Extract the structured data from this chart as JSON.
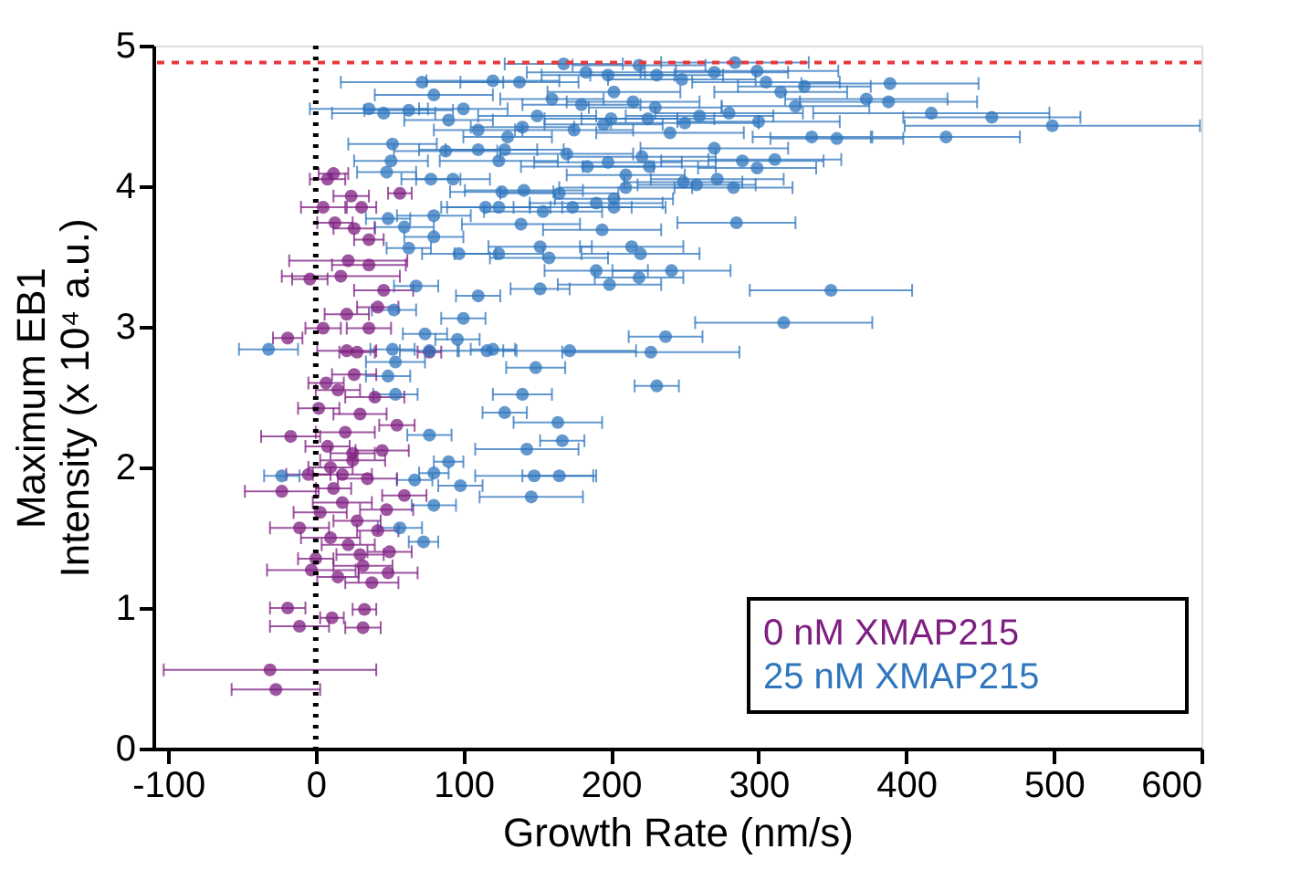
{
  "chart_data": {
    "type": "scatter",
    "xlabel": "Growth Rate (nm/s)",
    "ylabel": "Maximum EB1\nIntensity (x 10⁴ a.u.)",
    "xlim": [
      -110,
      600
    ],
    "xticks": [
      -100,
      0,
      100,
      200,
      300,
      400,
      500,
      600
    ],
    "ylim": [
      0,
      5
    ],
    "yticks": [
      0,
      1,
      2,
      3,
      4,
      5
    ],
    "grid": false,
    "legend": "bottom right",
    "marker": "circle",
    "ref_lines": [
      {
        "axis": "x",
        "value": 0,
        "color": "#000000",
        "line_style": "dotted"
      },
      {
        "axis": "y",
        "value": 4.88,
        "color": "#e8393c",
        "line_style": "dashed"
      }
    ],
    "series": [
      {
        "name": "0 nM XMAP215",
        "color": "#7e1e80",
        "x": [
          -31,
          -27,
          -19,
          -11,
          33,
          32,
          11,
          49,
          -3,
          -11,
          -17,
          -23,
          10,
          12,
          8,
          57,
          5,
          24,
          31,
          13,
          26,
          36,
          22,
          36,
          -4,
          17,
          46,
          42,
          21,
          -19,
          5,
          36,
          21,
          77,
          28,
          26,
          15,
          40,
          2,
          30,
          55,
          20,
          8,
          45,
          25,
          -5,
          35,
          12,
          60,
          18,
          3,
          28,
          42,
          10,
          22,
          50,
          0,
          32,
          15,
          38,
          7,
          25,
          48,
          18,
          30
        ],
        "values": [
          0.56,
          0.42,
          1.0,
          0.87,
          0.99,
          0.86,
          0.93,
          1.25,
          1.27,
          1.57,
          2.22,
          1.83,
          2.0,
          4.09,
          4.05,
          3.95,
          3.85,
          3.93,
          3.85,
          3.74,
          3.7,
          3.62,
          3.47,
          3.44,
          3.34,
          3.36,
          3.26,
          3.14,
          3.09,
          2.92,
          2.99,
          2.99,
          2.83,
          2.82,
          2.82,
          2.66,
          2.55,
          2.5,
          2.42,
          2.38,
          2.3,
          2.25,
          2.15,
          2.12,
          2.05,
          1.95,
          1.92,
          1.85,
          1.8,
          1.75,
          1.68,
          1.62,
          1.55,
          1.5,
          1.45,
          1.4,
          1.35,
          1.3,
          1.22,
          1.18,
          2.6,
          2.1,
          1.7,
          1.95,
          1.38
        ],
        "xerrors": [
          72,
          30,
          12,
          20,
          8,
          12,
          8,
          20,
          30,
          20,
          20,
          25,
          15,
          10,
          12,
          8,
          15,
          12,
          10,
          12,
          14,
          10,
          40,
          25,
          12,
          40,
          20,
          14,
          15,
          10,
          12,
          15,
          20,
          8,
          12,
          15,
          15,
          20,
          14,
          18,
          12,
          20,
          15,
          18,
          22,
          15,
          20,
          12,
          15,
          20,
          18,
          16,
          14,
          20,
          18,
          15,
          12,
          20,
          14,
          18,
          12,
          15,
          18,
          20,
          16
        ]
      },
      {
        "name": "25 nM XMAP215",
        "color": "#2f76bd",
        "x": [
          168,
          219,
          284,
          299,
          183,
          198,
          248,
          231,
          270,
          72,
          120,
          138,
          389,
          331,
          305,
          80,
          373,
          388,
          202,
          417,
          458,
          499,
          427,
          353,
          336,
          325,
          315,
          36,
          46,
          63,
          52,
          88,
          110,
          128,
          170,
          124,
          51,
          48,
          184,
          198,
          221,
          226,
          289,
          299,
          311,
          270,
          283,
          272,
          258,
          249,
          210,
          210,
          78,
          93,
          126,
          141,
          165,
          190,
          202,
          202,
          174,
          115,
          124,
          154,
          80,
          49,
          139,
          60,
          285,
          194,
          80,
          63,
          97,
          124,
          152,
          158,
          214,
          220,
          190,
          241,
          199,
          219,
          110,
          152,
          349,
          68,
          100,
          53,
          317,
          237,
          74,
          96,
          227,
          172,
          120,
          52,
          -32,
          149,
          54,
          231,
          140,
          128,
          164,
          167,
          143,
          77,
          90,
          80,
          165,
          148,
          98,
          146,
          80,
          73,
          -23,
          67,
          54,
          77,
          116,
          49,
          57,
          100,
          150,
          200,
          250,
          180,
          230,
          260,
          140,
          110,
          90,
          215,
          240,
          160,
          195,
          280,
          300,
          130,
          175,
          225
        ],
        "values": [
          4.87,
          4.86,
          4.88,
          4.82,
          4.81,
          4.79,
          4.76,
          4.79,
          4.81,
          4.74,
          4.75,
          4.74,
          4.73,
          4.71,
          4.74,
          4.65,
          4.62,
          4.6,
          4.67,
          4.52,
          4.49,
          4.43,
          4.35,
          4.34,
          4.35,
          4.57,
          4.67,
          4.55,
          4.52,
          4.54,
          4.3,
          4.25,
          4.26,
          4.26,
          4.23,
          4.18,
          4.18,
          4.1,
          4.14,
          4.17,
          4.21,
          4.14,
          4.18,
          4.13,
          4.19,
          4.27,
          3.99,
          4.05,
          4.01,
          4.03,
          3.99,
          4.08,
          4.05,
          4.05,
          3.96,
          3.97,
          3.95,
          3.88,
          3.91,
          3.85,
          3.85,
          3.85,
          3.85,
          3.82,
          3.79,
          3.77,
          3.73,
          3.71,
          3.74,
          3.69,
          3.64,
          3.56,
          3.52,
          3.52,
          3.57,
          3.49,
          3.57,
          3.52,
          3.4,
          3.4,
          3.3,
          3.35,
          3.22,
          3.27,
          3.26,
          3.29,
          3.06,
          3.12,
          3.03,
          2.93,
          2.95,
          2.91,
          2.82,
          2.83,
          2.84,
          2.84,
          2.84,
          2.71,
          2.75,
          2.58,
          2.52,
          2.39,
          2.32,
          2.19,
          2.13,
          2.23,
          2.04,
          1.96,
          1.94,
          1.94,
          1.87,
          1.79,
          1.73,
          1.47,
          1.94,
          1.91,
          2.52,
          2.83,
          2.83,
          2.65,
          1.57,
          4.55,
          4.5,
          4.48,
          4.45,
          4.58,
          4.56,
          4.5,
          4.42,
          4.4,
          4.47,
          4.6,
          4.38,
          4.62,
          4.44,
          4.52,
          4.46,
          4.35,
          4.4,
          4.48
        ],
        "xerrors": [
          40,
          45,
          50,
          55,
          40,
          45,
          50,
          45,
          50,
          55,
          45,
          40,
          60,
          45,
          50,
          40,
          55,
          60,
          45,
          80,
          60,
          100,
          50,
          45,
          40,
          50,
          45,
          40,
          35,
          30,
          30,
          35,
          40,
          40,
          45,
          40,
          25,
          20,
          45,
          50,
          50,
          45,
          55,
          40,
          45,
          50,
          40,
          45,
          40,
          40,
          45,
          40,
          20,
          25,
          35,
          40,
          40,
          45,
          40,
          35,
          40,
          30,
          35,
          40,
          25,
          15,
          40,
          20,
          40,
          40,
          20,
          15,
          25,
          30,
          35,
          40,
          35,
          40,
          35,
          40,
          35,
          30,
          15,
          20,
          55,
          15,
          15,
          15,
          60,
          25,
          15,
          15,
          60,
          45,
          15,
          15,
          20,
          20,
          20,
          15,
          20,
          15,
          30,
          15,
          35,
          15,
          10,
          10,
          25,
          40,
          15,
          35,
          15,
          10,
          12,
          12,
          15,
          20,
          20,
          15,
          15,
          30,
          40,
          45,
          50,
          40,
          45,
          50,
          35,
          30,
          30,
          45,
          50,
          35,
          40,
          50,
          55,
          30,
          40,
          45
        ]
      }
    ]
  }
}
